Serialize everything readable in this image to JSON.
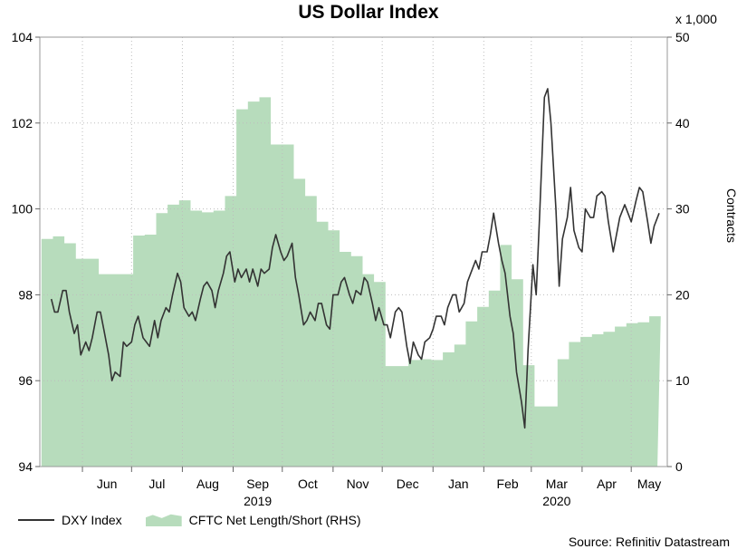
{
  "chart_data": {
    "type": "line",
    "title": "US Dollar Index",
    "source": "Source: Refinitiv Datastream",
    "left_axis": {
      "ylim": [
        94,
        104
      ],
      "ticks": [
        "94",
        "96",
        "98",
        "100",
        "102",
        "104"
      ]
    },
    "right_axis": {
      "ylabel": "Contracts",
      "multiplier": "x 1,000",
      "ylim": [
        0,
        50
      ],
      "ticks": [
        "0",
        "10",
        "20",
        "30",
        "40",
        "50"
      ]
    },
    "x_axis": {
      "months": [
        "Jun",
        "Jul",
        "Aug",
        "Sep",
        "Oct",
        "Nov",
        "Dec",
        "Jan",
        "Feb",
        "Mar",
        "Apr",
        "May"
      ],
      "years": [
        {
          "label": "2019",
          "month": "Sep"
        },
        {
          "label": "2020",
          "month": "Mar"
        }
      ]
    },
    "grid": true,
    "legend": "bottom-left",
    "series": [
      {
        "name": "DXY Index",
        "kind": "line",
        "axis": "left",
        "color": "#333333",
        "points": [
          [
            "2019-05-13",
            97.9
          ],
          [
            "2019-05-15",
            97.6
          ],
          [
            "2019-05-17",
            97.6
          ],
          [
            "2019-05-20",
            98.1
          ],
          [
            "2019-05-22",
            98.1
          ],
          [
            "2019-05-24",
            97.6
          ],
          [
            "2019-05-27",
            97.1
          ],
          [
            "2019-05-29",
            97.3
          ],
          [
            "2019-05-31",
            96.6
          ],
          [
            "2019-06-03",
            96.9
          ],
          [
            "2019-06-05",
            96.7
          ],
          [
            "2019-06-07",
            97.0
          ],
          [
            "2019-06-10",
            97.6
          ],
          [
            "2019-06-12",
            97.6
          ],
          [
            "2019-06-14",
            97.2
          ],
          [
            "2019-06-17",
            96.6
          ],
          [
            "2019-06-19",
            96.0
          ],
          [
            "2019-06-21",
            96.2
          ],
          [
            "2019-06-24",
            96.1
          ],
          [
            "2019-06-26",
            96.9
          ],
          [
            "2019-06-28",
            96.8
          ],
          [
            "2019-07-01",
            96.9
          ],
          [
            "2019-07-03",
            97.3
          ],
          [
            "2019-07-05",
            97.5
          ],
          [
            "2019-07-08",
            97.0
          ],
          [
            "2019-07-10",
            96.9
          ],
          [
            "2019-07-12",
            96.8
          ],
          [
            "2019-07-15",
            97.4
          ],
          [
            "2019-07-17",
            97.0
          ],
          [
            "2019-07-19",
            97.4
          ],
          [
            "2019-07-22",
            97.7
          ],
          [
            "2019-07-24",
            97.6
          ],
          [
            "2019-07-26",
            98.0
          ],
          [
            "2019-07-29",
            98.5
          ],
          [
            "2019-07-31",
            98.3
          ],
          [
            "2019-08-02",
            97.7
          ],
          [
            "2019-08-05",
            97.5
          ],
          [
            "2019-08-07",
            97.6
          ],
          [
            "2019-08-09",
            97.4
          ],
          [
            "2019-08-12",
            97.9
          ],
          [
            "2019-08-14",
            98.2
          ],
          [
            "2019-08-16",
            98.3
          ],
          [
            "2019-08-19",
            98.1
          ],
          [
            "2019-08-21",
            97.7
          ],
          [
            "2019-08-23",
            98.1
          ],
          [
            "2019-08-26",
            98.5
          ],
          [
            "2019-08-28",
            98.9
          ],
          [
            "2019-08-30",
            99.0
          ],
          [
            "2019-09-02",
            98.3
          ],
          [
            "2019-09-04",
            98.6
          ],
          [
            "2019-09-06",
            98.4
          ],
          [
            "2019-09-09",
            98.6
          ],
          [
            "2019-09-11",
            98.3
          ],
          [
            "2019-09-13",
            98.6
          ],
          [
            "2019-09-16",
            98.2
          ],
          [
            "2019-09-18",
            98.6
          ],
          [
            "2019-09-20",
            98.5
          ],
          [
            "2019-09-23",
            98.6
          ],
          [
            "2019-09-25",
            99.1
          ],
          [
            "2019-09-27",
            99.4
          ],
          [
            "2019-09-30",
            99.0
          ],
          [
            "2019-10-02",
            98.8
          ],
          [
            "2019-10-04",
            98.9
          ],
          [
            "2019-10-07",
            99.2
          ],
          [
            "2019-10-09",
            98.4
          ],
          [
            "2019-10-11",
            98.0
          ],
          [
            "2019-10-14",
            97.3
          ],
          [
            "2019-10-16",
            97.4
          ],
          [
            "2019-10-18",
            97.6
          ],
          [
            "2019-10-21",
            97.4
          ],
          [
            "2019-10-23",
            97.8
          ],
          [
            "2019-10-25",
            97.8
          ],
          [
            "2019-10-28",
            97.3
          ],
          [
            "2019-10-30",
            97.2
          ],
          [
            "2019-11-01",
            98.0
          ],
          [
            "2019-11-04",
            98.0
          ],
          [
            "2019-11-06",
            98.3
          ],
          [
            "2019-11-08",
            98.4
          ],
          [
            "2019-11-11",
            98.0
          ],
          [
            "2019-11-13",
            97.8
          ],
          [
            "2019-11-15",
            98.1
          ],
          [
            "2019-11-18",
            98.0
          ],
          [
            "2019-11-20",
            98.4
          ],
          [
            "2019-11-22",
            98.3
          ],
          [
            "2019-11-25",
            97.8
          ],
          [
            "2019-11-27",
            97.4
          ],
          [
            "2019-11-29",
            97.7
          ],
          [
            "2019-12-02",
            97.3
          ],
          [
            "2019-12-04",
            97.3
          ],
          [
            "2019-12-06",
            97.0
          ],
          [
            "2019-12-09",
            97.6
          ],
          [
            "2019-12-11",
            97.7
          ],
          [
            "2019-12-13",
            97.6
          ],
          [
            "2019-12-16",
            96.8
          ],
          [
            "2019-12-18",
            96.4
          ],
          [
            "2019-12-20",
            96.9
          ],
          [
            "2019-12-23",
            96.6
          ],
          [
            "2019-12-25",
            96.5
          ],
          [
            "2019-12-27",
            96.9
          ],
          [
            "2019-12-30",
            97.0
          ],
          [
            "2020-01-01",
            97.2
          ],
          [
            "2020-01-03",
            97.5
          ],
          [
            "2020-01-06",
            97.5
          ],
          [
            "2020-01-08",
            97.3
          ],
          [
            "2020-01-10",
            97.7
          ],
          [
            "2020-01-13",
            98.0
          ],
          [
            "2020-01-15",
            98.0
          ],
          [
            "2020-01-17",
            97.6
          ],
          [
            "2020-01-20",
            97.8
          ],
          [
            "2020-01-22",
            98.3
          ],
          [
            "2020-01-24",
            98.5
          ],
          [
            "2020-01-27",
            98.8
          ],
          [
            "2020-01-29",
            98.6
          ],
          [
            "2020-01-31",
            99.0
          ],
          [
            "2020-02-03",
            99.0
          ],
          [
            "2020-02-05",
            99.4
          ],
          [
            "2020-02-07",
            99.9
          ],
          [
            "2020-02-10",
            99.2
          ],
          [
            "2020-02-12",
            98.8
          ],
          [
            "2020-02-14",
            98.5
          ],
          [
            "2020-02-17",
            97.5
          ],
          [
            "2020-02-19",
            97.1
          ],
          [
            "2020-02-21",
            96.2
          ],
          [
            "2020-02-24",
            95.5
          ],
          [
            "2020-02-26",
            94.9
          ],
          [
            "2020-02-28",
            96.7
          ],
          [
            "2020-03-02",
            98.7
          ],
          [
            "2020-03-04",
            98.0
          ],
          [
            "2020-03-06",
            99.8
          ],
          [
            "2020-03-09",
            102.6
          ],
          [
            "2020-03-11",
            102.8
          ],
          [
            "2020-03-13",
            102.0
          ],
          [
            "2020-03-16",
            100.0
          ],
          [
            "2020-03-18",
            98.2
          ],
          [
            "2020-03-20",
            99.3
          ],
          [
            "2020-03-23",
            99.8
          ],
          [
            "2020-03-25",
            100.5
          ],
          [
            "2020-03-27",
            99.5
          ],
          [
            "2020-03-30",
            99.1
          ],
          [
            "2020-04-01",
            99.0
          ],
          [
            "2020-04-03",
            100.0
          ],
          [
            "2020-04-06",
            99.8
          ],
          [
            "2020-04-08",
            99.8
          ],
          [
            "2020-04-10",
            100.3
          ],
          [
            "2020-04-13",
            100.4
          ],
          [
            "2020-04-15",
            100.3
          ],
          [
            "2020-04-17",
            99.7
          ],
          [
            "2020-04-20",
            99.0
          ],
          [
            "2020-04-22",
            99.4
          ],
          [
            "2020-04-24",
            99.8
          ],
          [
            "2020-04-27",
            100.1
          ],
          [
            "2020-04-29",
            99.9
          ],
          [
            "2020-05-01",
            99.7
          ],
          [
            "2020-05-04",
            100.2
          ],
          [
            "2020-05-06",
            100.5
          ],
          [
            "2020-05-08",
            100.4
          ],
          [
            "2020-05-11",
            99.7
          ],
          [
            "2020-05-13",
            99.2
          ],
          [
            "2020-05-15",
            99.6
          ],
          [
            "2020-05-18",
            99.9
          ]
        ]
      },
      {
        "name": "CFTC Net Length/Short (RHS)",
        "kind": "area",
        "axis": "right",
        "color": "#b7dcbc",
        "points": [
          [
            "2019-05-07",
            26.5
          ],
          [
            "2019-05-14",
            26.8
          ],
          [
            "2019-05-21",
            26.0
          ],
          [
            "2019-05-28",
            24.2
          ],
          [
            "2019-06-04",
            24.2
          ],
          [
            "2019-06-11",
            22.4
          ],
          [
            "2019-06-18",
            22.4
          ],
          [
            "2019-06-25",
            22.4
          ],
          [
            "2019-07-02",
            26.9
          ],
          [
            "2019-07-09",
            27.0
          ],
          [
            "2019-07-16",
            29.5
          ],
          [
            "2019-07-23",
            30.5
          ],
          [
            "2019-07-30",
            31.0
          ],
          [
            "2019-08-06",
            29.8
          ],
          [
            "2019-08-13",
            29.6
          ],
          [
            "2019-08-20",
            29.8
          ],
          [
            "2019-08-27",
            31.5
          ],
          [
            "2019-09-03",
            41.6
          ],
          [
            "2019-09-10",
            42.5
          ],
          [
            "2019-09-17",
            43.0
          ],
          [
            "2019-09-24",
            37.5
          ],
          [
            "2019-10-01",
            37.5
          ],
          [
            "2019-10-08",
            33.5
          ],
          [
            "2019-10-15",
            31.5
          ],
          [
            "2019-10-22",
            28.5
          ],
          [
            "2019-10-29",
            27.5
          ],
          [
            "2019-11-05",
            25.0
          ],
          [
            "2019-11-12",
            24.5
          ],
          [
            "2019-11-19",
            22.4
          ],
          [
            "2019-11-26",
            21.5
          ],
          [
            "2019-12-03",
            11.7
          ],
          [
            "2019-12-10",
            11.7
          ],
          [
            "2019-12-17",
            12.4
          ],
          [
            "2019-12-24",
            12.5
          ],
          [
            "2019-12-31",
            12.4
          ],
          [
            "2020-01-07",
            13.3
          ],
          [
            "2020-01-14",
            14.2
          ],
          [
            "2020-01-21",
            16.9
          ],
          [
            "2020-01-28",
            18.6
          ],
          [
            "2020-02-04",
            20.5
          ],
          [
            "2020-02-11",
            25.8
          ],
          [
            "2020-02-18",
            21.8
          ],
          [
            "2020-02-25",
            11.8
          ],
          [
            "2020-03-03",
            7.0
          ],
          [
            "2020-03-10",
            7.0
          ],
          [
            "2020-03-17",
            12.5
          ],
          [
            "2020-03-24",
            14.5
          ],
          [
            "2020-03-31",
            15.1
          ],
          [
            "2020-04-07",
            15.4
          ],
          [
            "2020-04-14",
            15.7
          ],
          [
            "2020-04-21",
            16.3
          ],
          [
            "2020-04-28",
            16.7
          ],
          [
            "2020-05-05",
            16.8
          ],
          [
            "2020-05-12",
            17.5
          ]
        ]
      }
    ]
  }
}
